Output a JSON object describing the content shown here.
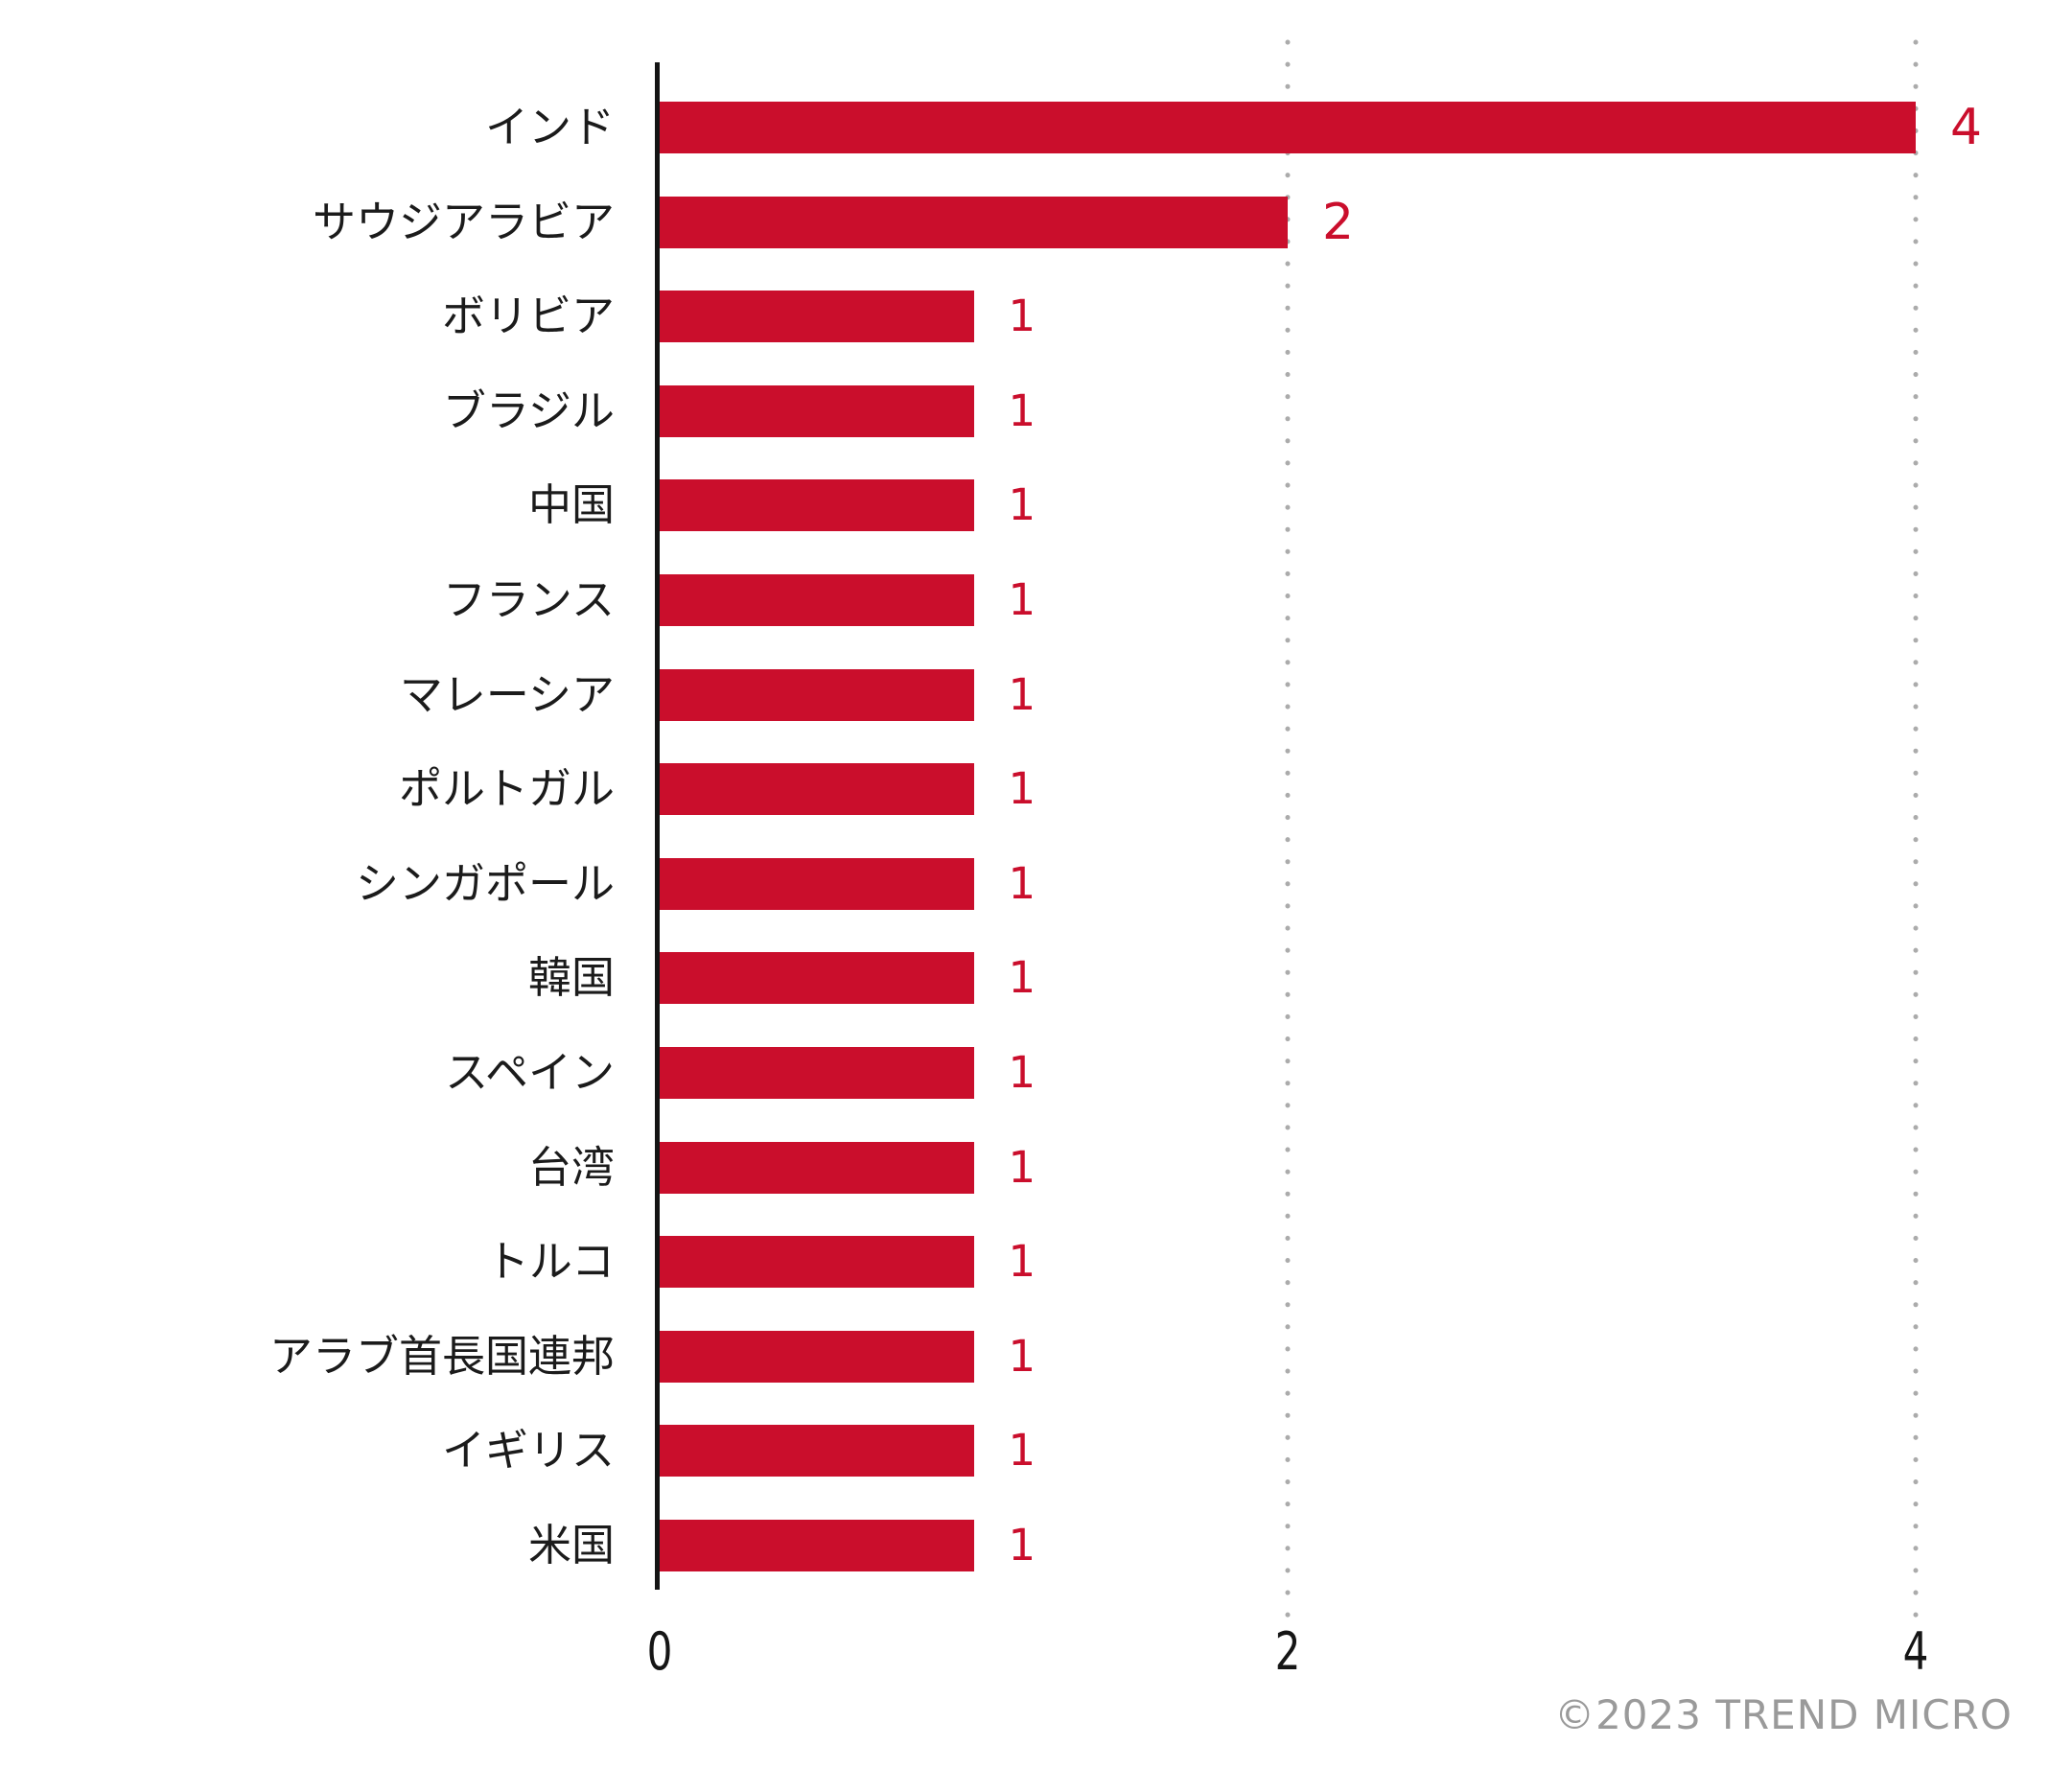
{
  "chart_data": {
    "type": "bar",
    "orientation": "horizontal",
    "title": "",
    "xlabel": "",
    "ylabel": "",
    "categories": [
      "インド",
      "サウジアラビア",
      "ボリビア",
      "ブラジル",
      "中国",
      "フランス",
      "マレーシア",
      "ポルトガル",
      "シンガポール",
      "韓国",
      "スペイン",
      "台湾",
      "トルコ",
      "アラブ首長国連邦",
      "イギリス",
      "米国"
    ],
    "values": [
      4,
      2,
      1,
      1,
      1,
      1,
      1,
      1,
      1,
      1,
      1,
      1,
      1,
      1,
      1,
      1
    ],
    "xlim": [
      0,
      4
    ],
    "x_ticks": [
      "0",
      "2",
      "4"
    ],
    "x_tick_values": [
      0,
      2,
      4
    ],
    "grid": "vertical dotted gridlines at x=2 and x=4",
    "legend": "none",
    "colors": {
      "bar": "#CA0E2C",
      "value_label": "#CA0E2C",
      "axis_line": "#141414",
      "gridline_dot": "#ABABAB",
      "tick_label": "#151515",
      "category_label": "#1B1B1B"
    }
  },
  "footer": {
    "attribution": "©2023 TREND MICRO",
    "color": "#9A9A9A"
  }
}
